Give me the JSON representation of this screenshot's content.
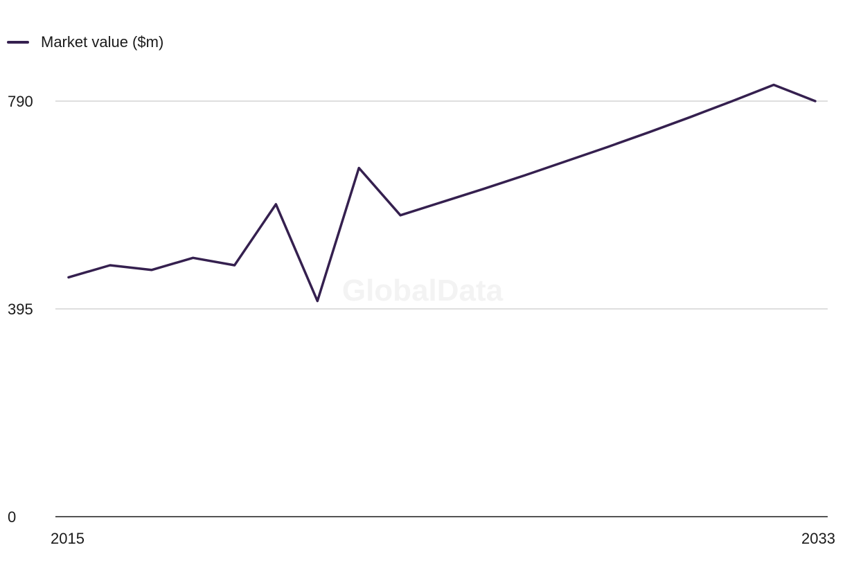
{
  "legend": {
    "label": "Market value ($m)"
  },
  "watermark": "GlobalData",
  "colors": {
    "series": "#35204f",
    "grid": "#d4d4d4",
    "axis": "#1a1a1a"
  },
  "chart_data": {
    "type": "line",
    "x": [
      2015,
      2016,
      2017,
      2018,
      2019,
      2020,
      2021,
      2022,
      2023,
      2024,
      2025,
      2026,
      2027,
      2028,
      2029,
      2030,
      2031,
      2032,
      2033
    ],
    "series": [
      {
        "name": "Market value ($m)",
        "values": [
          455,
          478,
          469,
          492,
          478,
          594,
          410,
          663,
          573,
          598,
          623,
          649,
          676,
          703,
          731,
          760,
          790,
          821,
          790
        ]
      }
    ],
    "yticks": [
      "790",
      "395",
      "0"
    ],
    "xtick_labels": [
      "2015",
      "2033"
    ],
    "ylim": [
      0,
      790
    ],
    "grid": true,
    "legend_position": "top-left"
  }
}
